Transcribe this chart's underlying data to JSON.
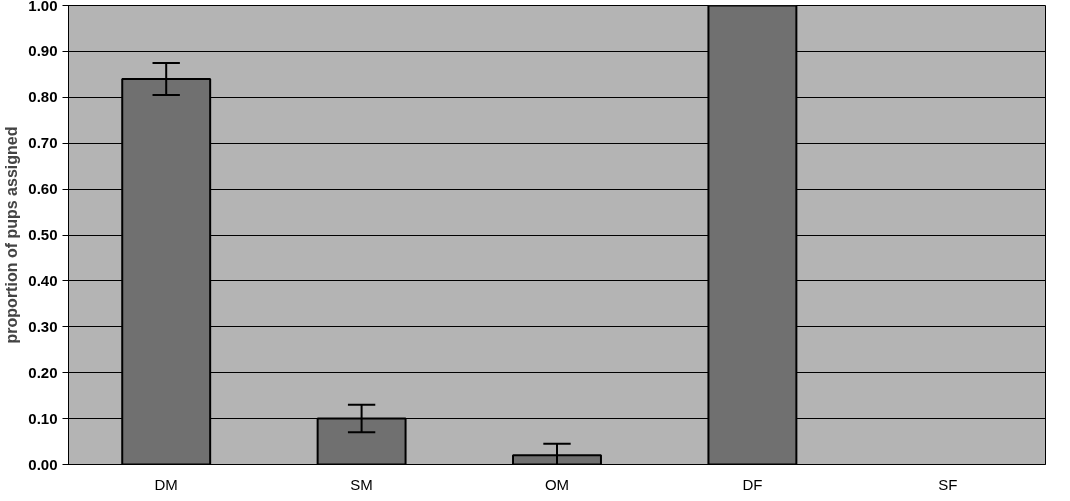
{
  "chart_data": {
    "type": "bar",
    "ylabel": "proportion of pups assigned",
    "categories": [
      "DM",
      "SM",
      "OM",
      "DF",
      "SF"
    ],
    "values": [
      0.84,
      0.1,
      0.02,
      1.0,
      0
    ],
    "errors": [
      0.035,
      0.03,
      0.025,
      null,
      null
    ],
    "color": "#707070",
    "ylim": [
      0,
      1
    ],
    "yticks": [
      {
        "value": 0,
        "label": "0.00"
      },
      {
        "value": 0.1,
        "label": "0.10"
      },
      {
        "value": 0.2,
        "label": "0.20"
      },
      {
        "value": 0.3,
        "label": "0.30"
      },
      {
        "value": 0.4,
        "label": "0.40"
      },
      {
        "value": 0.5,
        "label": "0.50"
      },
      {
        "value": 0.6,
        "label": "0.60"
      },
      {
        "value": 0.7,
        "label": "0.70"
      },
      {
        "value": 0.8,
        "label": "0.80"
      },
      {
        "value": 0.9,
        "label": "0.90"
      },
      {
        "value": 1,
        "label": "1.00"
      }
    ],
    "grid": "y"
  }
}
